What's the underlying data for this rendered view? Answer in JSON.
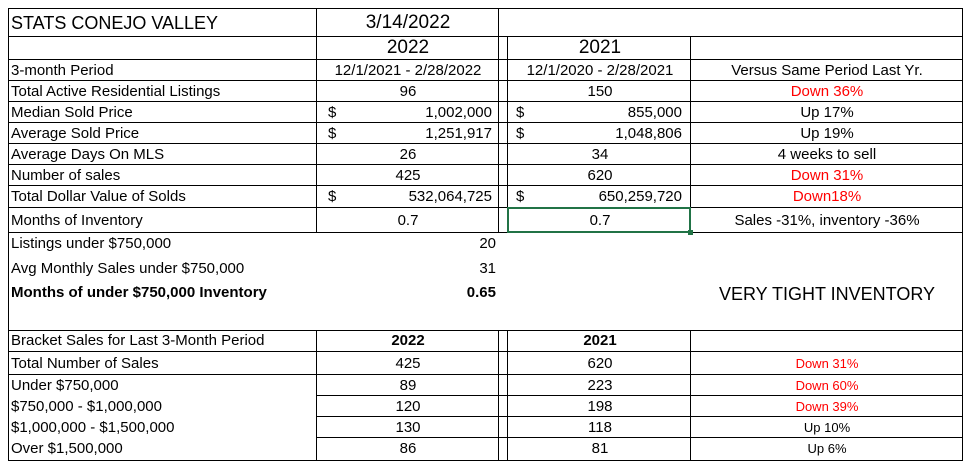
{
  "header": {
    "title": "STATS CONEJO VALLEY",
    "date": "3/14/2022"
  },
  "columns": {
    "year_a": "2022",
    "year_b": "2021"
  },
  "stats_rows": [
    {
      "label": "3-month Period",
      "a_sym": "",
      "a": "12/1/2021 - 2/28/2022",
      "b_sym": "",
      "b": "12/1/2020 - 2/28/2021",
      "cmp": "Versus Same Period Last Yr.",
      "red": false
    },
    {
      "label": "Total Active Residential Listings",
      "a_sym": "",
      "a": "96",
      "b_sym": "",
      "b": "150",
      "cmp": "Down 36%",
      "red": true
    },
    {
      "label": "Median Sold Price",
      "a_sym": "$",
      "a": "1,002,000",
      "b_sym": "$",
      "b": "855,000",
      "cmp": "Up 17%",
      "red": false
    },
    {
      "label": "Average Sold Price",
      "a_sym": "$",
      "a": "1,251,917",
      "b_sym": "$",
      "b": "1,048,806",
      "cmp": "Up 19%",
      "red": false
    },
    {
      "label": "Average Days On MLS",
      "a_sym": "",
      "a": "26",
      "b_sym": "",
      "b": "34",
      "cmp": "4 weeks to sell",
      "red": false
    },
    {
      "label": "Number of sales",
      "a_sym": "",
      "a": "425",
      "b_sym": "",
      "b": "620",
      "cmp": "Down 31%",
      "red": true
    },
    {
      "label": "Total Dollar Value of Solds",
      "a_sym": "$",
      "a": "532,064,725",
      "b_sym": "$",
      "b": "650,259,720",
      "cmp": "Down18%",
      "red": true
    },
    {
      "label": "Months of Inventory",
      "a_sym": "",
      "a": "0.7",
      "b_sym": "",
      "b": "0.7",
      "cmp": "Sales -31%, inventory -36%",
      "red": false
    }
  ],
  "under750": {
    "listings_label": "Listings under $750,000",
    "listings_value": "20",
    "sales_label": "Avg Monthly Sales under $750,000",
    "sales_value": "31",
    "inventory_label": "Months of under $750,000 Inventory",
    "inventory_value": "0.65",
    "note": "VERY TIGHT INVENTORY"
  },
  "bracket": {
    "header_label": "Bracket Sales for Last 3-Month Period",
    "year_a": "2022",
    "year_b": "2021",
    "rows": [
      {
        "label": "Total Number of Sales",
        "a": "425",
        "b": "620",
        "cmp": "Down 31%",
        "red": true
      },
      {
        "label": "Under $750,000",
        "a": "89",
        "b": "223",
        "cmp": "Down 60%",
        "red": true
      },
      {
        "label": "$750,000 - $1,000,000",
        "a": "120",
        "b": "198",
        "cmp": "Down 39%",
        "red": true
      },
      {
        "label": "$1,000,000 - $1,500,000",
        "a": "130",
        "b": "118",
        "cmp": "Up 10%",
        "red": false
      },
      {
        "label": "Over $1,500,000",
        "a": "86",
        "b": "81",
        "cmp": "Up 6%",
        "red": false
      }
    ]
  },
  "colors": {
    "down": "#ff0000",
    "grid": "#000000",
    "selection": "#217346"
  }
}
